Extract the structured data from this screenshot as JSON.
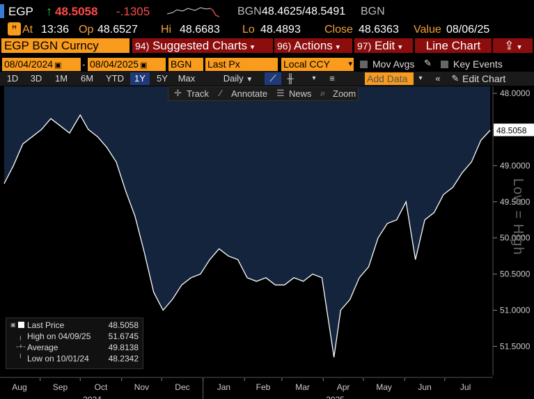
{
  "header": {
    "ticker": "EGP",
    "arrow": "↑",
    "price": "48.5058",
    "change": "-.1305",
    "source": "BGN",
    "bid_ask": "48.4625/48.5491",
    "source2": "BGN"
  },
  "quote": {
    "at_label": "At",
    "time": "13:36",
    "op_label": "Op",
    "op": "48.6527",
    "hi_label": "Hi",
    "hi": "48.6683",
    "lo_label": "Lo",
    "lo": "48.4893",
    "close_label": "Close",
    "close": "48.6363",
    "value_label": "Value",
    "value_date": "08/06/25"
  },
  "menu": {
    "security": "EGP BGN Curncy",
    "suggested_num": "94)",
    "suggested": "Suggested Charts",
    "actions_num": "96)",
    "actions": "Actions",
    "edit_num": "97)",
    "edit": "Edit",
    "chart_type": "Line Chart"
  },
  "controls": {
    "start_date": "08/04/2024",
    "end_date": "08/04/2025",
    "source": "BGN",
    "field": "Last Px",
    "currency": "Local CCY",
    "mov_avgs": "Mov Avgs",
    "key_events": "Key Events"
  },
  "periods": [
    "1D",
    "3D",
    "1M",
    "6M",
    "YTD",
    "1Y",
    "5Y",
    "Max"
  ],
  "active_period": "1Y",
  "frequency": "Daily",
  "add_data": "Add Data",
  "edit_chart": "Edit Chart",
  "subtools": {
    "track": "Track",
    "annotate": "Annotate",
    "news": "News",
    "zoom": "Zoom"
  },
  "watermark": "Low = High",
  "legend": {
    "last_label": "Last Price",
    "last_value": "48.5058",
    "high_label": "High on 04/09/25",
    "high_value": "51.6745",
    "avg_label": "Average",
    "avg_value": "49.8138",
    "low_label": "Low on 10/01/24",
    "low_value": "48.2342"
  },
  "colors": {
    "accent": "#f99b1c",
    "fill": "#13243c",
    "line": "#ffffff",
    "active": "#1f3a7a",
    "last_tag": "#ffffff"
  },
  "chart_data": {
    "type": "area",
    "title": "",
    "ylabel": "",
    "y_inverted": true,
    "ylim": [
      48.0,
      51.9
    ],
    "yticks": [
      "48.0000",
      "48.5000",
      "49.0000",
      "49.5000",
      "50.0000",
      "50.5000",
      "51.0000",
      "51.5000"
    ],
    "last_value_tag": "48.5058",
    "x_month_labels": [
      "Aug",
      "Sep",
      "Oct",
      "Nov",
      "Dec",
      "Jan",
      "Feb",
      "Mar",
      "Apr",
      "May",
      "Jun",
      "Jul"
    ],
    "x_year_labels": [
      "2024",
      "2025"
    ],
    "series": [
      {
        "x": [
          "2024-08-05",
          "2024-08-12",
          "2024-08-19",
          "2024-08-26",
          "2024-09-02",
          "2024-09-09",
          "2024-09-16",
          "2024-09-23",
          "2024-10-01",
          "2024-10-07",
          "2024-10-14",
          "2024-10-21",
          "2024-10-28",
          "2024-11-04",
          "2024-11-11",
          "2024-11-18",
          "2024-11-25",
          "2024-12-02",
          "2024-12-09",
          "2024-12-16",
          "2024-12-23",
          "2024-12-30",
          "2025-01-06",
          "2025-01-13",
          "2025-01-20",
          "2025-01-27",
          "2025-02-03",
          "2025-02-10",
          "2025-02-17",
          "2025-02-24",
          "2025-03-03",
          "2025-03-10",
          "2025-03-17",
          "2025-03-24",
          "2025-03-31",
          "2025-04-07",
          "2025-04-09",
          "2025-04-14",
          "2025-04-21",
          "2025-04-28",
          "2025-05-05",
          "2025-05-12",
          "2025-05-19",
          "2025-05-26",
          "2025-06-02",
          "2025-06-09",
          "2025-06-16",
          "2025-06-23",
          "2025-06-30",
          "2025-07-07",
          "2025-07-14",
          "2025-07-21",
          "2025-07-28",
          "2025-08-04"
        ],
        "values": [
          49.25,
          49.0,
          48.7,
          48.6,
          48.5,
          48.35,
          48.45,
          48.55,
          48.3,
          48.5,
          48.6,
          48.75,
          48.95,
          49.35,
          49.7,
          50.2,
          50.75,
          51.0,
          50.85,
          50.65,
          50.55,
          50.5,
          50.3,
          50.15,
          50.25,
          50.3,
          50.55,
          50.6,
          50.55,
          50.65,
          50.65,
          50.55,
          50.6,
          50.5,
          50.55,
          51.4,
          51.65,
          51.0,
          50.85,
          50.55,
          50.4,
          50.0,
          49.8,
          49.75,
          49.5,
          50.3,
          49.75,
          49.65,
          49.4,
          49.3,
          49.1,
          48.95,
          48.65,
          48.51
        ]
      }
    ]
  }
}
